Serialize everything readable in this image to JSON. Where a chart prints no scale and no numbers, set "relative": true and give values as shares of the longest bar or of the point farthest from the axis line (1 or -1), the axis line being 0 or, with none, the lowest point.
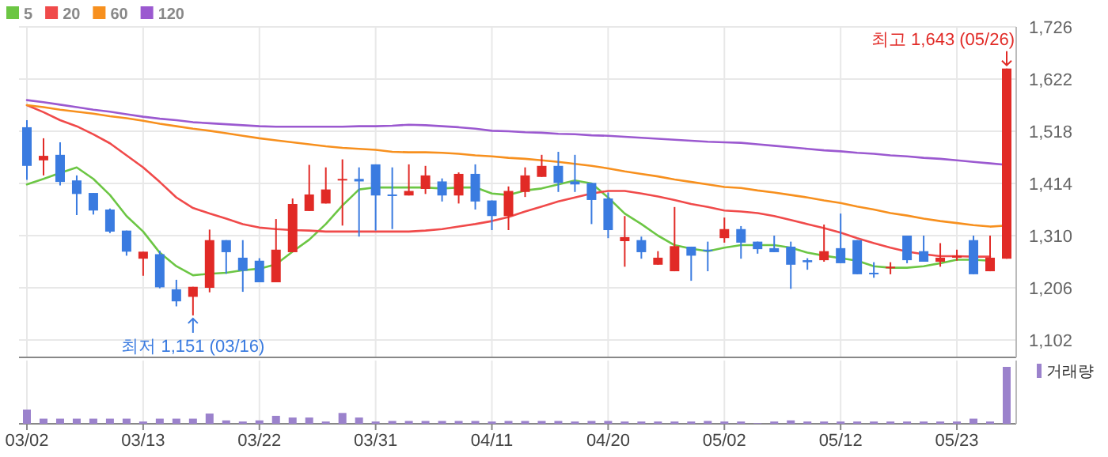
{
  "chart_data": [
    {
      "type": "candlestick",
      "tick_labels": "y",
      "grid": true,
      "legend": "top left",
      "categories": [
        null,
        null,
        null,
        null,
        null,
        null,
        null,
        null,
        null,
        null,
        null,
        null,
        null,
        null,
        null,
        null,
        null,
        null,
        null,
        null,
        null,
        null,
        null,
        null,
        null,
        null,
        null,
        null,
        null,
        null,
        null,
        null,
        null,
        null,
        null,
        null,
        null,
        null,
        null,
        null,
        null,
        null,
        null,
        null,
        null,
        null,
        null,
        null,
        null,
        null,
        null,
        null,
        null,
        null,
        null,
        null,
        null,
        null,
        null,
        null
      ],
      "ylim": [
        1102,
        1726
      ],
      "yticks": [
        {
          "value": 1102,
          "label": "1,102"
        },
        {
          "value": 1206,
          "label": "1,206"
        },
        {
          "value": 1310,
          "label": "1,310"
        },
        {
          "value": 1414,
          "label": "1,414"
        },
        {
          "value": 1518,
          "label": "1,518"
        },
        {
          "value": 1622,
          "label": "1,622"
        },
        {
          "value": 1726,
          "label": "1,726"
        }
      ],
      "ohlc": [
        [
          1526,
          1540,
          1421,
          1449
        ],
        [
          1460,
          1504,
          1430,
          1469
        ],
        [
          1471,
          1496,
          1410,
          1417
        ],
        [
          1420,
          1430,
          1351,
          1393
        ],
        [
          1395,
          1395,
          1352,
          1360
        ],
        [
          1362,
          1364,
          1315,
          1318
        ],
        [
          1320,
          1320,
          1270,
          1278
        ],
        [
          1264,
          1278,
          1230,
          1278
        ],
        [
          1273,
          1280,
          1205,
          1207
        ],
        [
          1203,
          1222,
          1169,
          1179
        ],
        [
          1188,
          1208,
          1151,
          1208
        ],
        [
          1206,
          1322,
          1197,
          1301
        ],
        [
          1301,
          1301,
          1234,
          1277
        ],
        [
          1266,
          1301,
          1198,
          1240
        ],
        [
          1260,
          1265,
          1217,
          1217
        ],
        [
          1217,
          1343,
          1217,
          1282
        ],
        [
          1277,
          1384,
          1277,
          1373
        ],
        [
          1359,
          1451,
          1359,
          1392
        ],
        [
          1374,
          1446,
          1374,
          1402
        ],
        [
          1421,
          1462,
          1330,
          1423
        ],
        [
          1423,
          1446,
          1308,
          1418
        ],
        [
          1452,
          1452,
          1320,
          1390
        ],
        [
          1392,
          1446,
          1323,
          1389
        ],
        [
          1390,
          1452,
          1390,
          1399
        ],
        [
          1403,
          1449,
          1393,
          1430
        ],
        [
          1418,
          1424,
          1378,
          1390
        ],
        [
          1390,
          1436,
          1374,
          1433
        ],
        [
          1433,
          1452,
          1362,
          1378
        ],
        [
          1380,
          1380,
          1321,
          1349
        ],
        [
          1349,
          1408,
          1321,
          1399
        ],
        [
          1397,
          1446,
          1387,
          1430
        ],
        [
          1427,
          1471,
          1427,
          1449
        ],
        [
          1449,
          1477,
          1397,
          1415
        ],
        [
          1418,
          1471,
          1397,
          1412
        ],
        [
          1415,
          1415,
          1333,
          1381
        ],
        [
          1384,
          1396,
          1305,
          1321
        ],
        [
          1299,
          1349,
          1248,
          1307
        ],
        [
          1301,
          1308,
          1264,
          1277
        ],
        [
          1252,
          1279,
          1252,
          1266
        ],
        [
          1239,
          1367,
          1239,
          1289
        ],
        [
          1288,
          1288,
          1220,
          1270
        ],
        [
          1282,
          1298,
          1239,
          1279
        ],
        [
          1305,
          1346,
          1296,
          1323
        ],
        [
          1323,
          1329,
          1264,
          1296
        ],
        [
          1298,
          1298,
          1274,
          1283
        ],
        [
          1285,
          1310,
          1277,
          1277
        ],
        [
          1288,
          1298,
          1204,
          1252
        ],
        [
          1261,
          1265,
          1242,
          1257
        ],
        [
          1261,
          1332,
          1258,
          1279
        ],
        [
          1285,
          1354,
          1255,
          1255
        ],
        [
          1301,
          1301,
          1233,
          1233
        ],
        [
          1236,
          1257,
          1226,
          1233
        ],
        [
          1245,
          1257,
          1233,
          1248
        ],
        [
          1310,
          1310,
          1255,
          1261
        ],
        [
          1279,
          1310,
          1258,
          1258
        ],
        [
          1258,
          1295,
          1248,
          1266
        ],
        [
          1266,
          1282,
          1260,
          1270
        ],
        [
          1301,
          1310,
          1233,
          1233
        ],
        [
          1239,
          1310,
          1239,
          1266
        ],
        [
          1264,
          1643,
          1264,
          1643
        ]
      ],
      "series": [
        {
          "name": "5",
          "type": "line",
          "color": "#6cc644",
          "values": [
            1412,
            1423,
            1435,
            1446,
            1423,
            1391,
            1349,
            1318,
            1276,
            1249,
            1231,
            1234,
            1236,
            1241,
            1244,
            1253,
            1278,
            1302,
            1333,
            1370,
            1402,
            1406,
            1406,
            1406,
            1406,
            1404,
            1406,
            1406,
            1394,
            1391,
            1400,
            1404,
            1412,
            1420,
            1414,
            1386,
            1354,
            1333,
            1310,
            1291,
            1284,
            1279,
            1286,
            1291,
            1291,
            1291,
            1286,
            1276,
            1270,
            1265,
            1260,
            1249,
            1246,
            1246,
            1249,
            1255,
            1262,
            1262,
            1260,
            null
          ]
        },
        {
          "name": "20",
          "type": "line",
          "color": "#f04a4a",
          "values": [
            1570,
            1556,
            1540,
            1528,
            1512,
            1494,
            1470,
            1446,
            1417,
            1386,
            1365,
            1354,
            1344,
            1333,
            1326,
            1323,
            1321,
            1320,
            1318,
            1318,
            1318,
            1318,
            1318,
            1318,
            1320,
            1323,
            1328,
            1333,
            1339,
            1347,
            1358,
            1368,
            1378,
            1386,
            1394,
            1399,
            1399,
            1394,
            1388,
            1381,
            1373,
            1367,
            1360,
            1358,
            1355,
            1349,
            1341,
            1333,
            1325,
            1316,
            1305,
            1295,
            1286,
            1278,
            1273,
            1269,
            1269,
            1268,
            1268,
            null
          ]
        },
        {
          "name": "60",
          "type": "line",
          "color": "#f7901e",
          "values": [
            1570,
            1566,
            1561,
            1557,
            1553,
            1548,
            1544,
            1539,
            1533,
            1528,
            1523,
            1519,
            1514,
            1509,
            1504,
            1500,
            1496,
            1492,
            1488,
            1485,
            1483,
            1481,
            1477,
            1476,
            1476,
            1475,
            1473,
            1470,
            1468,
            1465,
            1463,
            1460,
            1457,
            1453,
            1449,
            1444,
            1438,
            1433,
            1428,
            1422,
            1417,
            1412,
            1407,
            1405,
            1400,
            1396,
            1391,
            1386,
            1380,
            1375,
            1368,
            1362,
            1355,
            1350,
            1344,
            1339,
            1335,
            1331,
            1328,
            1330
          ]
        },
        {
          "name": "120",
          "type": "line",
          "color": "#9b59d0",
          "values": [
            1580,
            1576,
            1571,
            1566,
            1561,
            1557,
            1552,
            1547,
            1543,
            1540,
            1536,
            1534,
            1532,
            1530,
            1528,
            1527,
            1527,
            1527,
            1527,
            1527,
            1528,
            1528,
            1529,
            1531,
            1530,
            1528,
            1526,
            1523,
            1519,
            1518,
            1516,
            1515,
            1513,
            1512,
            1510,
            1509,
            1507,
            1505,
            1503,
            1501,
            1499,
            1497,
            1496,
            1495,
            1492,
            1489,
            1486,
            1483,
            1480,
            1478,
            1475,
            1473,
            1470,
            1468,
            1465,
            1463,
            1460,
            1457,
            1454,
            1451
          ]
        }
      ],
      "annotations": [
        "최고 1,643 (05/26)",
        "최저 1,151 (03/16)"
      ]
    },
    {
      "type": "bar",
      "relative": true,
      "tick_labels": "x",
      "grid": "x",
      "legend": "top right",
      "categories": [
        "03/02",
        null,
        null,
        null,
        null,
        null,
        null,
        "03/13",
        null,
        null,
        null,
        null,
        null,
        null,
        "03/22",
        null,
        null,
        null,
        null,
        null,
        null,
        "03/31",
        null,
        null,
        null,
        null,
        null,
        null,
        "04/11",
        null,
        null,
        null,
        null,
        null,
        null,
        "04/20",
        null,
        null,
        null,
        null,
        null,
        null,
        "05/02",
        null,
        null,
        null,
        null,
        null,
        null,
        "05/12",
        null,
        null,
        null,
        null,
        null,
        null,
        "05/23",
        null,
        null,
        null
      ],
      "series": [
        {
          "name": "거래량",
          "color": "#9b82cc",
          "values": [
            0.25,
            0.09,
            0.09,
            0.09,
            0.09,
            0.09,
            0.09,
            0.04,
            0.09,
            0.09,
            0.09,
            0.18,
            0.06,
            0.04,
            0.06,
            0.14,
            0.11,
            0.11,
            0.04,
            0.19,
            0.11,
            0.04,
            0.05,
            0.05,
            0.05,
            0.05,
            0.05,
            0.05,
            0.04,
            0.05,
            0.05,
            0.05,
            0.05,
            0.04,
            0.05,
            0.05,
            0.04,
            0.04,
            0.04,
            0.04,
            0.04,
            0.05,
            0.04,
            0.04,
            0.01,
            0.04,
            0.06,
            0.04,
            0.04,
            0.04,
            0.04,
            0.04,
            0.04,
            0.04,
            0.04,
            0.04,
            0.04,
            0.09,
            0.04,
            1
          ]
        }
      ]
    }
  ]
}
